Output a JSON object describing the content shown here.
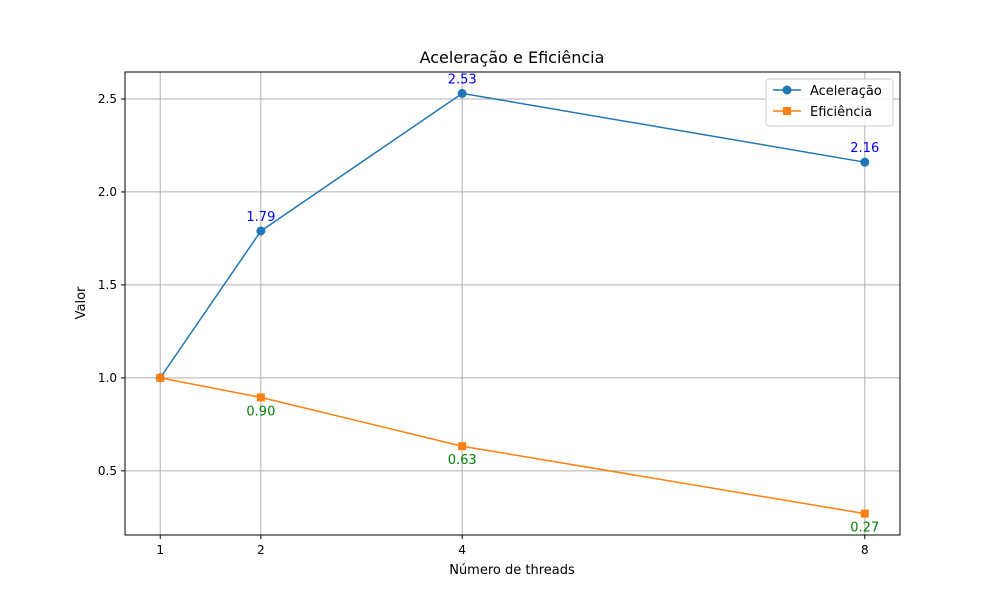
{
  "chart_data": {
    "type": "line",
    "title": "Aceleração e Eficiência",
    "xlabel": "Número de threads",
    "ylabel": "Valor",
    "x": [
      1,
      2,
      4,
      8
    ],
    "xticks": [
      "1",
      "2",
      "4",
      "8"
    ],
    "xlim": [
      0.65,
      8.35
    ],
    "ylim": [
      0.155,
      2.645
    ],
    "yticks": [
      0.5,
      1.0,
      1.5,
      2.0,
      2.5
    ],
    "ytick_labels": [
      "0.5",
      "1.0",
      "1.5",
      "2.0",
      "2.5"
    ],
    "grid": true,
    "legend_position": "top-right",
    "series": [
      {
        "name": "Aceleração",
        "values": [
          1.0,
          1.79,
          2.53,
          2.16
        ],
        "color": "#1f77b4",
        "marker": "circle",
        "labels": [
          null,
          "1.79",
          "2.53",
          "2.16"
        ],
        "label_color": "#0000ff",
        "label_position": "above"
      },
      {
        "name": "Eficiência",
        "values": [
          1.0,
          0.895,
          0.6325,
          0.27
        ],
        "color": "#ff7f0e",
        "marker": "square",
        "labels": [
          null,
          "0.90",
          "0.63",
          "0.27"
        ],
        "label_color": "#008000",
        "label_position": "below"
      }
    ]
  }
}
